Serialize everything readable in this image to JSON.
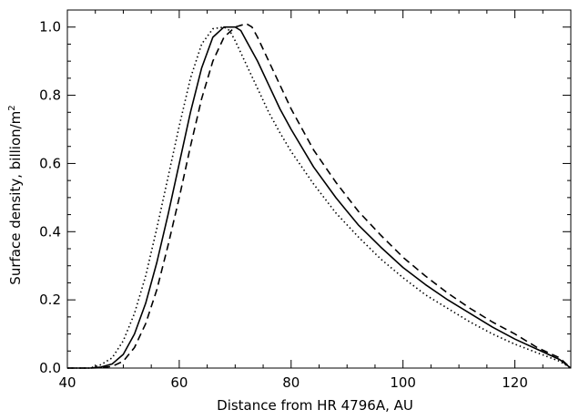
{
  "chart_data": {
    "type": "line",
    "title": "",
    "xlabel": "Distance from HR 4796A, AU",
    "ylabel": "Surface density, billion/m",
    "ylabel_superscript": "2",
    "xlim": [
      40,
      130
    ],
    "ylim": [
      0,
      1.05
    ],
    "x_ticks": [
      40,
      60,
      80,
      100,
      120
    ],
    "x_tick_labels": [
      "40",
      "60",
      "80",
      "100",
      "120"
    ],
    "y_ticks": [
      0.0,
      0.2,
      0.4,
      0.6,
      0.8,
      1.0
    ],
    "y_tick_labels": [
      "0.0",
      "0.2",
      "0.4",
      "0.6",
      "0.8",
      "1.0"
    ],
    "grid": false,
    "legend": "none",
    "series": [
      {
        "style": "solid",
        "x": [
          40,
          44,
          46,
          48,
          50,
          52,
          54,
          56,
          58,
          60,
          62,
          64,
          66,
          68,
          70,
          71,
          72,
          74,
          76,
          78,
          80,
          84,
          88,
          92,
          96,
          100,
          104,
          108,
          112,
          116,
          120,
          124,
          128,
          130
        ],
        "y": [
          0.0,
          0.0,
          0.003,
          0.012,
          0.04,
          0.1,
          0.19,
          0.31,
          0.45,
          0.6,
          0.75,
          0.88,
          0.97,
          1.0,
          1.0,
          0.99,
          0.96,
          0.9,
          0.83,
          0.76,
          0.7,
          0.59,
          0.5,
          0.42,
          0.355,
          0.295,
          0.245,
          0.2,
          0.16,
          0.12,
          0.085,
          0.055,
          0.025,
          0.0
        ]
      },
      {
        "style": "dashed",
        "x": [
          40,
          44,
          46,
          48,
          50,
          52,
          54,
          56,
          58,
          60,
          62,
          64,
          66,
          68,
          70,
          72,
          73,
          74,
          76,
          78,
          80,
          84,
          88,
          92,
          96,
          100,
          104,
          108,
          112,
          116,
          120,
          124,
          128,
          130
        ],
        "y": [
          0.0,
          0.0,
          0.001,
          0.005,
          0.02,
          0.06,
          0.13,
          0.23,
          0.36,
          0.5,
          0.65,
          0.79,
          0.9,
          0.97,
          1.0,
          1.01,
          1.0,
          0.97,
          0.9,
          0.83,
          0.76,
          0.64,
          0.545,
          0.46,
          0.39,
          0.325,
          0.27,
          0.22,
          0.175,
          0.135,
          0.1,
          0.06,
          0.03,
          0.0
        ]
      },
      {
        "style": "dotted",
        "x": [
          40,
          44,
          46,
          48,
          50,
          52,
          54,
          56,
          58,
          60,
          62,
          64,
          66,
          68,
          69,
          70,
          72,
          74,
          76,
          78,
          80,
          84,
          88,
          92,
          96,
          100,
          104,
          108,
          112,
          116,
          120,
          124,
          128,
          130
        ],
        "y": [
          0.0,
          0.0,
          0.01,
          0.03,
          0.08,
          0.16,
          0.27,
          0.41,
          0.56,
          0.71,
          0.85,
          0.95,
          0.995,
          1.0,
          0.99,
          0.96,
          0.89,
          0.82,
          0.75,
          0.69,
          0.635,
          0.54,
          0.455,
          0.385,
          0.32,
          0.265,
          0.215,
          0.175,
          0.135,
          0.1,
          0.07,
          0.045,
          0.02,
          0.0
        ]
      }
    ]
  }
}
